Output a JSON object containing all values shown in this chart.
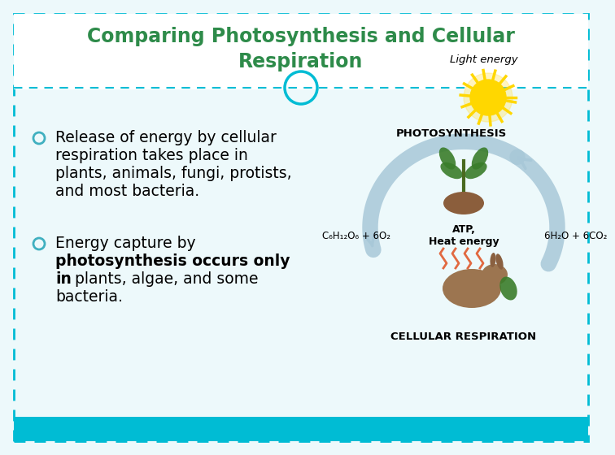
{
  "title_line1": "Comparing Photosynthesis and Cellular",
  "title_line2": "Respiration",
  "title_color": "#2e8b4a",
  "bg_color": "#edf9fb",
  "border_color": "#00bcd4",
  "bottom_bar_color": "#00bcd4",
  "bullet_color": "#40b0c0",
  "text_fontsize": 13.5,
  "title_fontsize": 17,
  "diagram_labels": {
    "light_energy": "Light energy",
    "photosynthesis": "PHOTOSYNTHESIS",
    "atp": "ATP,\nHeat energy",
    "left_formula": "C₆H₁₂O₆ + 6O₂",
    "right_formula": "6H₂O + 6CO₂",
    "cellular": "CELLULAR RESPIRATION"
  },
  "arrow_color": "#a8c8d8",
  "arrow_lw": 14
}
